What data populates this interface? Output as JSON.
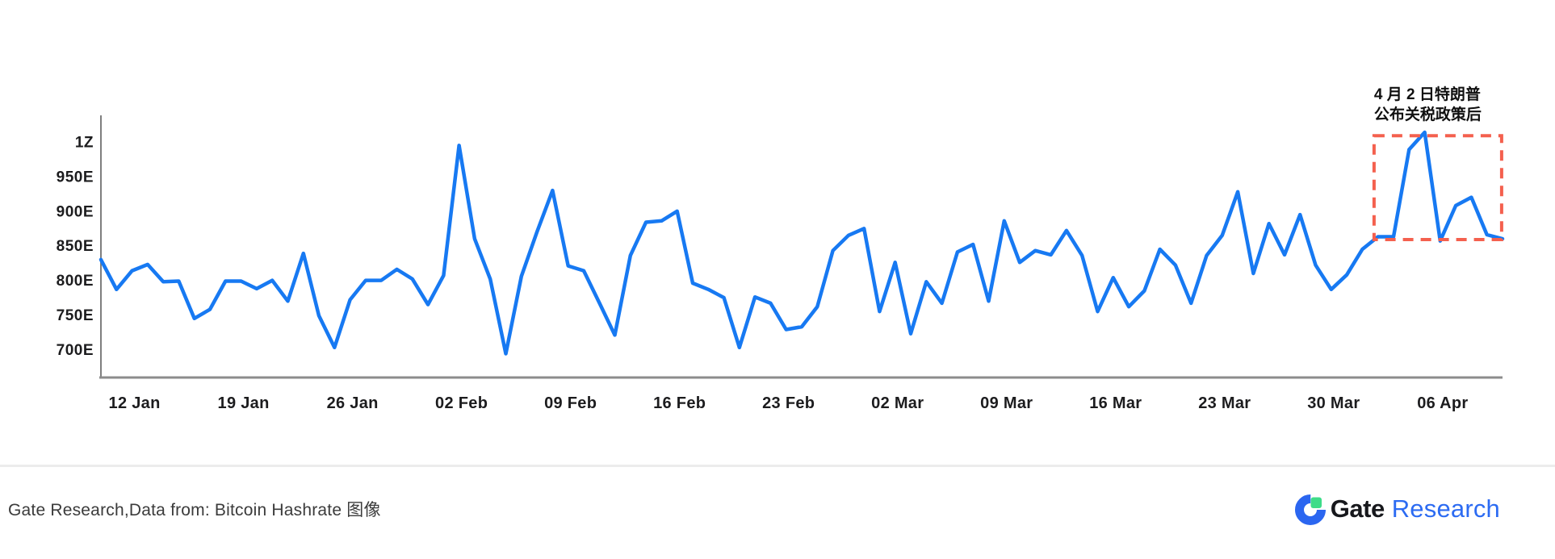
{
  "chart_data": {
    "type": "line",
    "title": "",
    "series_name": "Bitcoin Hashrate",
    "y_ticks": [
      {
        "label": "1Z",
        "value": 1000
      },
      {
        "label": "950E",
        "value": 950
      },
      {
        "label": "900E",
        "value": 900
      },
      {
        "label": "850E",
        "value": 850
      },
      {
        "label": "800E",
        "value": 800
      },
      {
        "label": "750E",
        "value": 750
      },
      {
        "label": "700E",
        "value": 700
      }
    ],
    "x_ticks": [
      {
        "label": "12 Jan",
        "index": 2
      },
      {
        "label": "19 Jan",
        "index": 9
      },
      {
        "label": "26 Jan",
        "index": 16
      },
      {
        "label": "02 Feb",
        "index": 23
      },
      {
        "label": "09 Feb",
        "index": 30
      },
      {
        "label": "16 Feb",
        "index": 37
      },
      {
        "label": "23 Feb",
        "index": 44
      },
      {
        "label": "02 Mar",
        "index": 51
      },
      {
        "label": "09 Mar",
        "index": 58
      },
      {
        "label": "16 Mar",
        "index": 65
      },
      {
        "label": "23 Mar",
        "index": 72
      },
      {
        "label": "30 Mar",
        "index": 79
      },
      {
        "label": "06 Apr",
        "index": 86
      }
    ],
    "values": [
      830,
      787,
      814,
      823,
      798,
      799,
      745,
      758,
      799,
      799,
      788,
      800,
      770,
      839,
      749,
      703,
      772,
      800,
      800,
      816,
      802,
      765,
      807,
      995,
      860,
      802,
      694,
      806,
      870,
      930,
      821,
      814,
      768,
      721,
      836,
      884,
      886,
      900,
      796,
      787,
      775,
      703,
      776,
      767,
      729,
      733,
      762,
      843,
      865,
      875,
      755,
      826,
      723,
      798,
      767,
      841,
      852,
      770,
      886,
      826,
      843,
      837,
      872,
      836,
      755,
      804,
      762,
      785,
      845,
      822,
      767,
      836,
      865,
      928,
      810,
      882,
      837,
      895,
      822,
      787,
      808,
      845,
      863,
      863,
      989,
      1014,
      857,
      908,
      920,
      866,
      860
    ],
    "ylim": [
      660,
      1040
    ],
    "grid": false,
    "legend": "none",
    "annotation": {
      "text_lines": [
        "4 月 2 日特朗普",
        "公布关税政策后"
      ],
      "box": {
        "start_index": 81.75,
        "end_index": 89.94,
        "top_value": 1009,
        "bottom_value": 859
      }
    },
    "colors": {
      "line": "#1779f2",
      "annotation_box": "#f4604e",
      "axis": "#868686",
      "tick_text": "#1c1c1e",
      "annotation_text": "#101010"
    }
  },
  "footer": {
    "source_text": "Gate Research,Data from: Bitcoin Hashrate 图像",
    "logo": {
      "brand": "Gate",
      "product": "Research",
      "brand_color": "#17181c",
      "product_color": "#2c6bf2",
      "icon_blue": "#2b66f0",
      "icon_green": "#3edc89"
    }
  }
}
